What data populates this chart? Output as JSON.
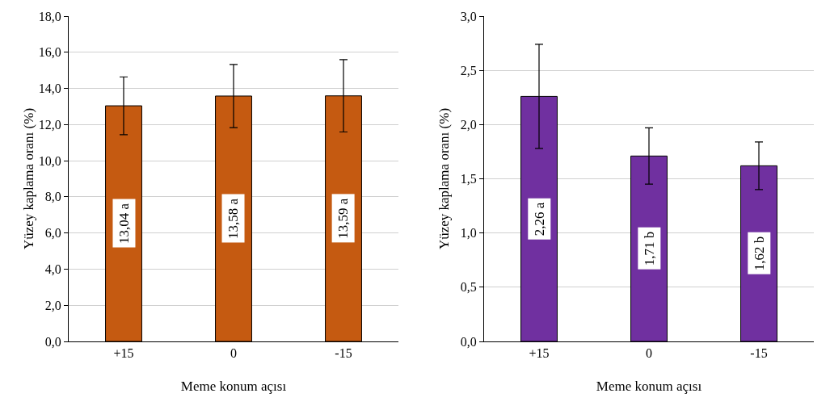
{
  "chart_data": [
    {
      "type": "bar",
      "xlabel": "Meme konum açısı",
      "ylabel": "Yüzey kaplama oranı (%)",
      "categories": [
        "+15",
        "0",
        "-15"
      ],
      "series": [
        {
          "color": "#c55a11",
          "values": [
            13.04,
            13.58,
            13.59
          ],
          "errors": [
            1.6,
            1.75,
            2.0
          ],
          "value_labels": [
            "13,04 a",
            "13,58 a",
            "13,59 a"
          ]
        }
      ],
      "ylim": [
        0,
        18
      ],
      "yticks": [
        {
          "value": 0,
          "label": "0,0"
        },
        {
          "value": 2,
          "label": "2,0"
        },
        {
          "value": 4,
          "label": "4,0"
        },
        {
          "value": 6,
          "label": "6,0"
        },
        {
          "value": 8,
          "label": "8,0"
        },
        {
          "value": 10,
          "label": "10,0"
        },
        {
          "value": 12,
          "label": "12,0"
        },
        {
          "value": 14,
          "label": "14,0"
        },
        {
          "value": 16,
          "label": "16,0"
        },
        {
          "value": 18,
          "label": "18,0"
        }
      ],
      "grid": "y"
    },
    {
      "type": "bar",
      "xlabel": "Meme konum açısı",
      "ylabel": "Yüzey kaplama oranı (%)",
      "categories": [
        "+15",
        "0",
        "-15"
      ],
      "series": [
        {
          "color": "#7030a0",
          "values": [
            2.26,
            1.71,
            1.62
          ],
          "errors": [
            0.48,
            0.26,
            0.22
          ],
          "value_labels": [
            "2,26 a",
            "1,71 b",
            "1,62 b"
          ]
        }
      ],
      "ylim": [
        0,
        3
      ],
      "yticks": [
        {
          "value": 0,
          "label": "0,0"
        },
        {
          "value": 0.5,
          "label": "0,5"
        },
        {
          "value": 1,
          "label": "1,0"
        },
        {
          "value": 1.5,
          "label": "1,5"
        },
        {
          "value": 2,
          "label": "2,0"
        },
        {
          "value": 2.5,
          "label": "2,5"
        },
        {
          "value": 3,
          "label": "3,0"
        }
      ],
      "grid": "y"
    }
  ]
}
